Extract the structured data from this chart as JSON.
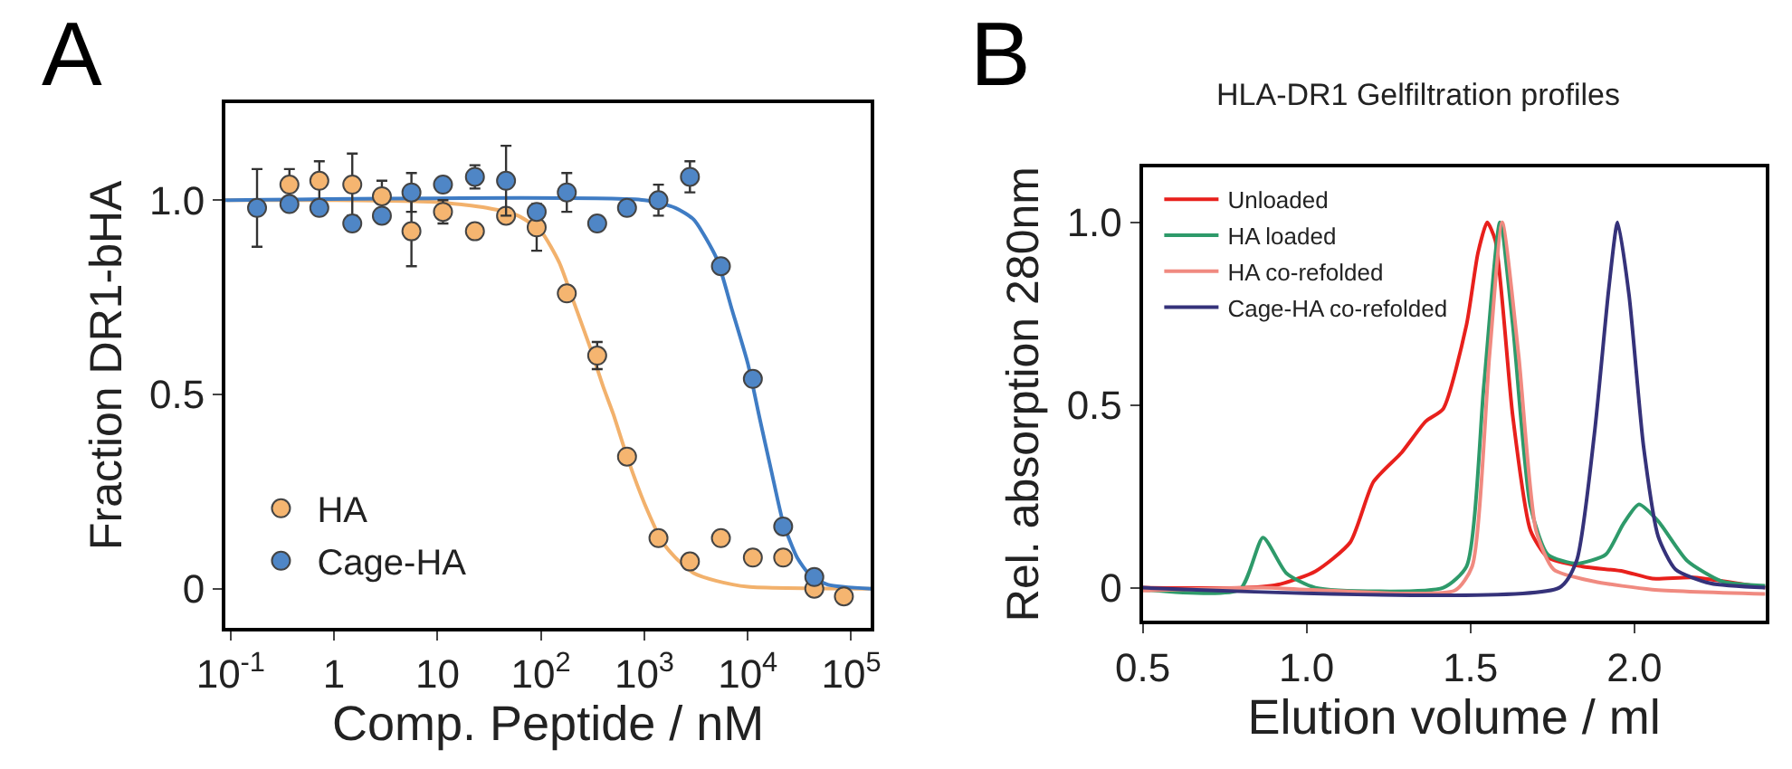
{
  "chart_data": [
    {
      "type": "scatter",
      "annotations": [
        "A"
      ],
      "xlabel": "Comp. Peptide / nM",
      "ylabel": "Fraction DR1-bHA",
      "log": "x",
      "xlim": [
        0.089,
        155000
      ],
      "xticks": [
        {
          "value": 0.1,
          "label": "10$^{-1}$"
        },
        1,
        10,
        {
          "value": 100,
          "label": "10$^{2}$"
        },
        {
          "value": 1000,
          "label": "10$^{3}$"
        },
        {
          "value": 10000,
          "label": "10$^{4}$"
        },
        {
          "value": 100000,
          "label": "10$^{5}$"
        }
      ],
      "ylim": [
        -0.1,
        1.25
      ],
      "yticks": [
        0,
        0.5,
        {
          "value": 1,
          "label": "1.0"
        }
      ],
      "legend": "bottom left",
      "marker": "circle",
      "line_style": "solid",
      "series": [
        {
          "type": "line",
          "marker": "none",
          "color": "#f2b16c",
          "x": [
            0.089,
            1,
            10,
            30,
            60,
            100,
            150,
            200,
            300,
            400,
            500,
            700,
            1000,
            1500,
            2000,
            3000,
            5000,
            10000,
            155000
          ],
          "values": [
            1.0,
            1.0,
            0.995,
            0.98,
            0.96,
            0.92,
            0.84,
            0.75,
            0.62,
            0.52,
            0.45,
            0.33,
            0.22,
            0.12,
            0.08,
            0.04,
            0.02,
            0.005,
            0
          ]
        },
        {
          "type": "line",
          "marker": "none",
          "color": "#3f7cc4",
          "x": [
            0.089,
            1000,
            2000,
            3000,
            5000,
            7000,
            10000,
            13000,
            17000,
            22000,
            30000,
            40000,
            60000,
            155000
          ],
          "values": [
            1.0,
            1.0,
            0.98,
            0.95,
            0.85,
            0.72,
            0.58,
            0.44,
            0.3,
            0.17,
            0.08,
            0.035,
            0.01,
            0
          ]
        },
        {
          "name": "HA",
          "color": "#f5b570",
          "x": [
            0.37,
            0.72,
            1.5,
            2.9,
            5.6,
            11.3,
            23,
            46,
            91,
            178,
            350,
            680,
            1370,
            2760,
            5500,
            11200,
            22000,
            44000,
            85000
          ],
          "values": [
            1.04,
            1.05,
            1.04,
            1.01,
            0.92,
            0.97,
            0.92,
            0.96,
            0.93,
            0.76,
            0.6,
            0.34,
            0.13,
            0.07,
            0.13,
            0.08,
            0.08,
            0.0,
            -0.02
          ],
          "errors": [
            0.04,
            0.05,
            0.08,
            0.04,
            0.09,
            0.03,
            null,
            null,
            0.06,
            null,
            0.035,
            null,
            null,
            null,
            null,
            null,
            null,
            null,
            null
          ]
        },
        {
          "name": "Cage-HA",
          "color": "#4f86c6",
          "x": [
            0.18,
            0.37,
            0.72,
            1.5,
            2.9,
            5.6,
            11.3,
            23,
            46,
            91,
            178,
            350,
            680,
            1370,
            2760,
            5500,
            11200,
            22000,
            44000
          ],
          "values": [
            0.98,
            0.99,
            0.98,
            0.94,
            0.96,
            1.02,
            1.04,
            1.06,
            1.05,
            0.97,
            1.02,
            0.94,
            0.98,
            1.0,
            1.06,
            0.83,
            0.54,
            0.16,
            0.03
          ],
          "errors": [
            0.1,
            null,
            null,
            null,
            null,
            0.05,
            null,
            0.03,
            0.09,
            null,
            0.05,
            null,
            null,
            0.04,
            0.04,
            null,
            null,
            null,
            null
          ]
        }
      ]
    },
    {
      "type": "line",
      "annotations": [
        "B"
      ],
      "title": "HLA-DR1 Gelfiltration profiles",
      "xlabel": "Elution volume / ml",
      "ylabel": "Rel. absorption 280nm",
      "xlim": [
        0.5,
        2.4
      ],
      "xticks": [
        0.5,
        {
          "value": 1,
          "label": "1.0"
        },
        1.5,
        {
          "value": 2,
          "label": "2.0"
        }
      ],
      "ylim": [
        -0.09,
        1.15
      ],
      "yticks": [
        0,
        0.5,
        {
          "value": 1,
          "label": "1.0"
        }
      ],
      "legend": "top left",
      "line_style": "solid",
      "series": [
        {
          "name": "Unloaded",
          "color": "#e8201c",
          "x": [
            0.5,
            0.814,
            0.92,
            1.027,
            1.133,
            1.204,
            1.29,
            1.363,
            1.417,
            1.488,
            1.523,
            1.551,
            1.576,
            1.629,
            1.683,
            1.736,
            1.842,
            1.966,
            2.055,
            2.179,
            2.4
          ],
          "values": [
            0,
            0,
            0.01,
            0.045,
            0.124,
            0.29,
            0.37,
            0.455,
            0.49,
            0.72,
            0.917,
            1.0,
            0.95,
            0.47,
            0.157,
            0.083,
            0.058,
            0.045,
            0.025,
            0.028,
            0
          ]
        },
        {
          "name": "HA loaded",
          "color": "#2e9a6a",
          "x": [
            0.5,
            0.796,
            0.867,
            0.938,
            1.027,
            1.417,
            1.488,
            1.541,
            1.59,
            1.629,
            1.683,
            1.736,
            1.824,
            1.913,
            1.966,
            2.014,
            2.073,
            2.161,
            2.268,
            2.4
          ],
          "values": [
            -0.005,
            -0.005,
            0.137,
            0.04,
            0,
            0,
            0.058,
            0.554,
            1.0,
            0.72,
            0.223,
            0.091,
            0.066,
            0.091,
            0.174,
            0.228,
            0.182,
            0.074,
            0.017,
            0.005
          ]
        },
        {
          "name": "HA co-refolded",
          "color": "#f08a80",
          "x": [
            0.5,
            0.867,
            1.0,
            1.452,
            1.505,
            1.558,
            1.597,
            1.647,
            1.7,
            1.754,
            1.878,
            2.055,
            2.4
          ],
          "values": [
            -0.008,
            0,
            -0.005,
            -0.008,
            0.058,
            0.636,
            1.0,
            0.636,
            0.157,
            0.05,
            0.017,
            -0.005,
            -0.017
          ]
        },
        {
          "name": "Cage-HA co-refolded",
          "color": "#35327a",
          "x": [
            0.5,
            1.771,
            1.824,
            1.878,
            1.922,
            1.949,
            1.984,
            2.028,
            2.073,
            2.126,
            2.232,
            2.4
          ],
          "values": [
            0,
            0,
            0.074,
            0.42,
            0.818,
            1.0,
            0.8,
            0.388,
            0.14,
            0.05,
            0.012,
            0
          ]
        }
      ]
    }
  ]
}
